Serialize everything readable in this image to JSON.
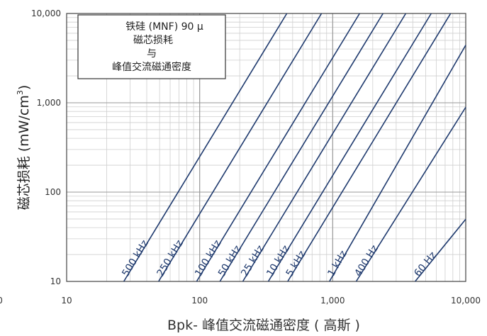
{
  "chart_data": {
    "type": "line",
    "title_lines": [
      "铁硅 (MNF) 90 μ",
      "磁芯损耗",
      "与",
      "峰值交流磁通密度"
    ],
    "xlabel": "Bpk- 峰值交流磁通密度 ( 高斯 )",
    "ylabel": "磁芯损耗 (mW/cm",
    "ylabel_sup": "3",
    "ylabel_close": ")",
    "x_scale": "log",
    "y_scale": "log",
    "xlim": [
      10,
      10000
    ],
    "ylim": [
      10,
      10000
    ],
    "x_tick_labels": [
      "10",
      "100",
      "1,000",
      "10,000"
    ],
    "y_tick_labels": [
      "10",
      "100",
      "1,000",
      "10,000"
    ],
    "clipped_tick_label": "0",
    "grid": true,
    "line_color": "#1f3a6e",
    "series": [
      {
        "name": "500 kHz",
        "x": [
          26.9,
          452
        ],
        "y": [
          10,
          10000
        ]
      },
      {
        "name": "250 kHz",
        "x": [
          49.1,
          824
        ],
        "y": [
          10,
          10000
        ]
      },
      {
        "name": "100 kHz",
        "x": [
          94.9,
          1593
        ],
        "y": [
          10,
          10000
        ]
      },
      {
        "name": "50 kHz",
        "x": [
          142,
          2389
        ],
        "y": [
          10,
          10000
        ]
      },
      {
        "name": "25 kHz",
        "x": [
          211,
          3542
        ],
        "y": [
          10,
          10000
        ]
      },
      {
        "name": "10 kHz",
        "x": [
          328,
          5501
        ],
        "y": [
          10,
          10000
        ]
      },
      {
        "name": "5 kHz",
        "x": [
          459,
          7696
        ],
        "y": [
          10,
          10000
        ]
      },
      {
        "name": "1 kHz",
        "x": [
          945,
          10000
        ],
        "y": [
          10,
          4420
        ]
      },
      {
        "name": "400 Hz",
        "x": [
          1502,
          10000
        ],
        "y": [
          10,
          892
        ]
      },
      {
        "name": "60 Hz",
        "x": [
          4165,
          10000
        ],
        "y": [
          10,
          49.7
        ]
      }
    ]
  }
}
